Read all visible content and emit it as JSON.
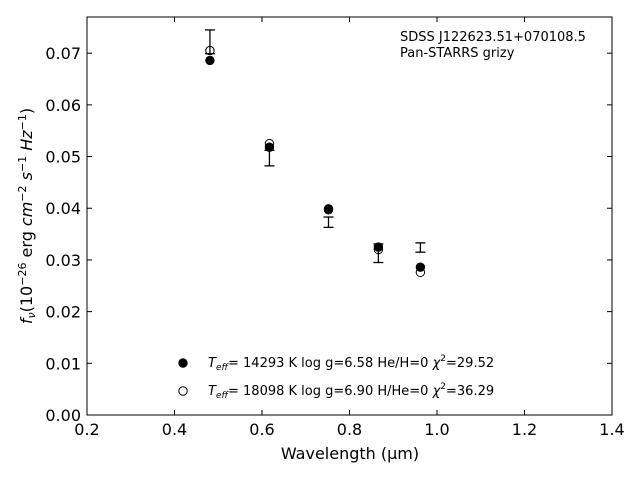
{
  "chart_data": {
    "type": "scatter",
    "xlabel": "Wavelength (μm)",
    "ylabel_parts": {
      "f": "f",
      "nu": "ν",
      "open": "(10",
      "exp1": "−26",
      "erg": " erg ",
      "cm": "cm",
      "exp2": "−2",
      "s": " s",
      "exp3": "−1",
      "hz": " Hz",
      "exp4": "−1",
      "close": ")"
    },
    "xlim": [
      0.2,
      1.4
    ],
    "ylim": [
      0.0,
      0.077
    ],
    "xticks": [
      0.2,
      0.4,
      0.6,
      0.8,
      1.0,
      1.2,
      1.4
    ],
    "xtick_labels": [
      "0.2",
      "0.4",
      "0.6",
      "0.8",
      "1.0",
      "1.2",
      "1.4"
    ],
    "yticks": [
      0.0,
      0.01,
      0.02,
      0.03,
      0.04,
      0.05,
      0.06,
      0.07
    ],
    "ytick_labels": [
      "0.00",
      "0.01",
      "0.02",
      "0.03",
      "0.04",
      "0.05",
      "0.06",
      "0.07"
    ],
    "annotation": [
      "SDSS J122623.51+070108.5",
      "Pan-STARRS grizy"
    ],
    "observed": {
      "x": [
        0.481,
        0.617,
        0.752,
        0.866,
        0.962
      ],
      "y": [
        0.0722,
        0.0497,
        0.0373,
        0.0313,
        0.0324
      ],
      "yerr": [
        0.0023,
        0.0015,
        0.001,
        0.0018,
        0.0009
      ]
    },
    "series": [
      {
        "marker": "filled",
        "x": [
          0.481,
          0.617,
          0.752,
          0.866,
          0.962
        ],
        "y": [
          0.0686,
          0.0518,
          0.0399,
          0.0325,
          0.0286
        ],
        "legend": {
          "t": "T",
          "sub": "eff",
          "a": "= 14293 K  log g=6.58  He/H=0  ",
          "chi": "χ",
          "sup": "2",
          "b": "=29.52"
        }
      },
      {
        "marker": "open",
        "x": [
          0.481,
          0.617,
          0.752,
          0.866,
          0.962
        ],
        "y": [
          0.0705,
          0.0525,
          0.0397,
          0.032,
          0.0276
        ],
        "legend": {
          "t": "T",
          "sub": "eff",
          "a": "= 18098 K  log g=6.90  H/He=0  ",
          "chi": "χ",
          "sup": "2",
          "b": "=36.29"
        }
      }
    ]
  }
}
